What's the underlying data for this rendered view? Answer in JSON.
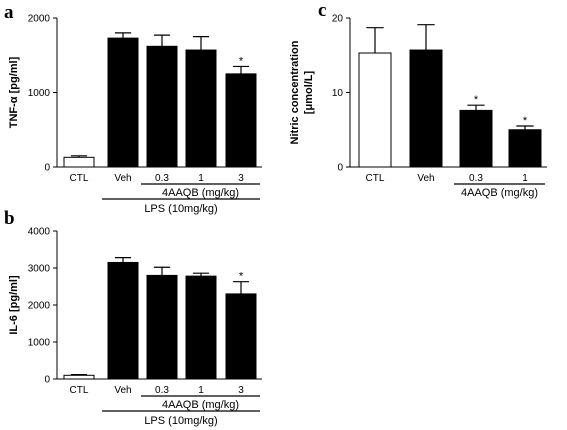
{
  "colors": {
    "open_bar": "#ffffff",
    "filled_bar": "#000000",
    "stroke": "#000000"
  },
  "chart_data": [
    {
      "type": "bar",
      "panel": "a",
      "ylabel": "TNF-α [pg/ml]",
      "ylim": [
        0,
        2000
      ],
      "yticks": [
        "0",
        "1000",
        "2000"
      ],
      "categories": [
        "CTL",
        "Veh",
        "0.3",
        "1",
        "3"
      ],
      "values": [
        130,
        1730,
        1620,
        1570,
        1250
      ],
      "errors": [
        20,
        70,
        150,
        180,
        100
      ],
      "fills": [
        "open",
        "filled",
        "filled",
        "filled",
        "filled"
      ],
      "significant": [
        false,
        false,
        false,
        false,
        true
      ],
      "significance_mark": "*",
      "group_labels": [
        {
          "text": "4AAQB (mg/kg)",
          "span": [
            2,
            4
          ]
        },
        {
          "text": "LPS (10mg/kg)",
          "span": [
            1,
            4
          ]
        }
      ]
    },
    {
      "type": "bar",
      "panel": "b",
      "ylabel": "IL-6 [pg/ml]",
      "ylim": [
        0,
        4000
      ],
      "yticks": [
        "0",
        "1000",
        "2000",
        "3000",
        "4000"
      ],
      "categories": [
        "CTL",
        "Veh",
        "0.3",
        "1",
        "3"
      ],
      "values": [
        100,
        3150,
        2800,
        2780,
        2300
      ],
      "errors": [
        20,
        130,
        220,
        80,
        330
      ],
      "fills": [
        "open",
        "filled",
        "filled",
        "filled",
        "filled"
      ],
      "significant": [
        false,
        false,
        false,
        false,
        true
      ],
      "significance_mark": "*",
      "group_labels": [
        {
          "text": "4AAQB (mg/kg)",
          "span": [
            2,
            4
          ]
        },
        {
          "text": "LPS (10mg/kg)",
          "span": [
            1,
            4
          ]
        }
      ]
    },
    {
      "type": "bar",
      "panel": "c",
      "ylabel": "Nitric concentration [μmol/L]",
      "ylabel_lines": [
        "Nitric concentration",
        "[μmol/L]"
      ],
      "ylim": [
        0,
        20
      ],
      "yticks": [
        "0",
        "10",
        "20"
      ],
      "categories": [
        "CTL",
        "Veh",
        "0.3",
        "1"
      ],
      "values": [
        15.3,
        15.7,
        7.6,
        5.0
      ],
      "errors": [
        3.4,
        3.4,
        0.7,
        0.5
      ],
      "fills": [
        "open",
        "filled",
        "filled",
        "filled"
      ],
      "significant": [
        false,
        false,
        true,
        true
      ],
      "significance_mark": "*",
      "group_labels": [
        {
          "text": "4AAQB (mg/kg)",
          "span": [
            2,
            3
          ]
        }
      ]
    }
  ]
}
